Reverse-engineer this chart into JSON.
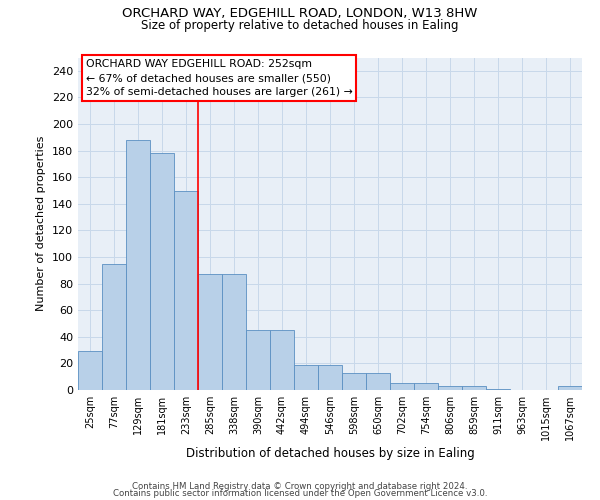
{
  "title1": "ORCHARD WAY, EDGEHILL ROAD, LONDON, W13 8HW",
  "title2": "Size of property relative to detached houses in Ealing",
  "xlabel": "Distribution of detached houses by size in Ealing",
  "ylabel": "Number of detached properties",
  "footer1": "Contains HM Land Registry data © Crown copyright and database right 2024.",
  "footer2": "Contains public sector information licensed under the Open Government Licence v3.0.",
  "bar_color": "#b8d0e8",
  "bar_edge_color": "#5a8fc2",
  "grid_color": "#c8d8ea",
  "background_color": "#e8eff7",
  "categories": [
    "25sqm",
    "77sqm",
    "129sqm",
    "181sqm",
    "233sqm",
    "285sqm",
    "338sqm",
    "390sqm",
    "442sqm",
    "494sqm",
    "546sqm",
    "598sqm",
    "650sqm",
    "702sqm",
    "754sqm",
    "806sqm",
    "859sqm",
    "911sqm",
    "963sqm",
    "1015sqm",
    "1067sqm"
  ],
  "heights": [
    29,
    95,
    188,
    178,
    150,
    87,
    87,
    45,
    45,
    19,
    19,
    13,
    13,
    5,
    5,
    3,
    3,
    1,
    0,
    0,
    3
  ],
  "red_line_x": 4.0,
  "annotation_text": "ORCHARD WAY EDGEHILL ROAD: 252sqm\n← 67% of detached houses are smaller (550)\n32% of semi-detached houses are larger (261) →",
  "ylim": [
    0,
    250
  ],
  "yticks": [
    0,
    20,
    40,
    60,
    80,
    100,
    120,
    140,
    160,
    180,
    200,
    220,
    240
  ]
}
